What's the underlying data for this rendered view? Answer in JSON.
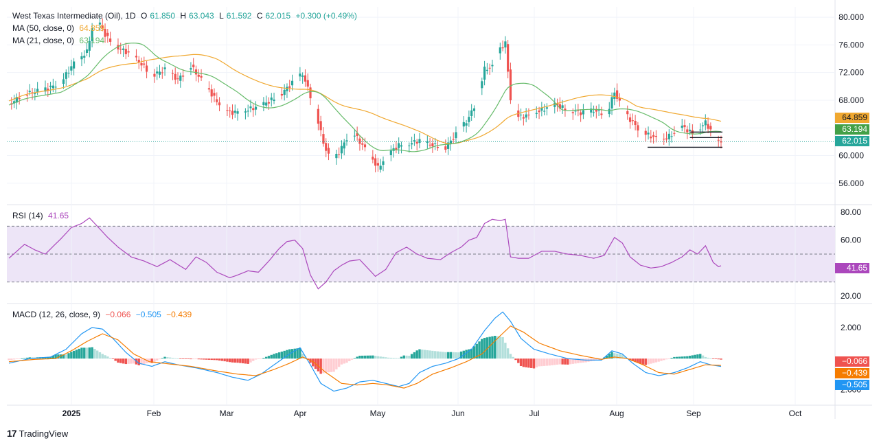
{
  "header": {
    "symbol": "West Texas Intermediate (Oil), 1D",
    "ohlc": {
      "o_label": "O",
      "o": "61.850",
      "h_label": "H",
      "h": "63.043",
      "l_label": "L",
      "l": "61.592",
      "c_label": "C",
      "c": "62.015",
      "change": "+0.300 (+0.49%)"
    },
    "ma50": {
      "label": "MA (50, close, 0)",
      "value": "64.859"
    },
    "ma21": {
      "label": "MA (21, close, 0)",
      "value": "63.194"
    }
  },
  "rsi_pane": {
    "label": "RSI (14)",
    "value": "41.65"
  },
  "macd_pane": {
    "label": "MACD (12, 26, close, 9)",
    "hist": "−0.066",
    "macd": "−0.505",
    "signal": "−0.439"
  },
  "price_tags": {
    "ma50": "64.859",
    "ma21": "63.194",
    "close": "62.015"
  },
  "rsi_tag": "41.65",
  "macd_tags": {
    "hist": "−0.066",
    "signal": "−0.439",
    "macd": "−0.505"
  },
  "branding": {
    "name": "TradingView"
  },
  "colors": {
    "up": "#26a69a",
    "down": "#ef5350",
    "ma50": "#f0a830",
    "ma21": "#66bb6a",
    "rsi": "#ab47bc",
    "rsi_band": "#ede5f7",
    "macd": "#2196f3",
    "signal": "#f57c00",
    "hist_up_strong": "#26a69a",
    "hist_up_weak": "#b2dfdb",
    "hist_down_strong": "#ef5350",
    "hist_down_weak": "#ffcdd2"
  },
  "chart_data": {
    "type": "candlestick",
    "price_axis": {
      "ticks": [
        "80.000",
        "76.000",
        "72.000",
        "68.000",
        "64.000",
        "60.000",
        "56.000"
      ],
      "range": [
        53,
        81.5
      ]
    },
    "rsi_axis": {
      "ticks": [
        "80.00",
        "60.00",
        "40.00",
        "20.00"
      ],
      "range": [
        15,
        85
      ],
      "bands": [
        70,
        30
      ],
      "midline": 50
    },
    "macd_axis": {
      "ticks": [
        "2.000",
        "−2.000"
      ],
      "range": [
        -3,
        3.5
      ]
    },
    "x_axis": {
      "ticks": [
        "2025",
        "Feb",
        "Mar",
        "Apr",
        "May",
        "Jun",
        "Jul",
        "Aug",
        "Sep",
        "Oct"
      ]
    },
    "support_lines": [
      61.2,
      62.6,
      63.4
    ],
    "price_keypoints": [
      [
        0,
        67.3
      ],
      [
        5,
        68.8
      ],
      [
        10,
        69.2
      ],
      [
        15,
        69.7
      ],
      [
        20,
        70.6
      ],
      [
        25,
        73.4
      ],
      [
        30,
        75.0
      ],
      [
        32,
        78.5
      ],
      [
        35,
        79.1
      ],
      [
        37,
        77.5
      ],
      [
        40,
        76.0
      ],
      [
        45,
        75.0
      ],
      [
        50,
        73.6
      ],
      [
        55,
        71.6
      ],
      [
        60,
        72.4
      ],
      [
        65,
        71.0
      ],
      [
        70,
        72.9
      ],
      [
        75,
        70.5
      ],
      [
        80,
        67.8
      ],
      [
        85,
        66.2
      ],
      [
        90,
        66.4
      ],
      [
        95,
        67.0
      ],
      [
        100,
        67.8
      ],
      [
        105,
        69.0
      ],
      [
        110,
        70.9
      ],
      [
        113,
        71.8
      ],
      [
        118,
        66.5
      ],
      [
        121,
        61.8
      ],
      [
        124,
        59.0
      ],
      [
        127,
        60.5
      ],
      [
        130,
        62.5
      ],
      [
        133,
        63.0
      ],
      [
        136,
        61.5
      ],
      [
        139,
        60.0
      ],
      [
        142,
        58.2
      ],
      [
        146,
        60.3
      ],
      [
        150,
        61.5
      ],
      [
        154,
        61.7
      ],
      [
        158,
        62.2
      ],
      [
        163,
        61.5
      ],
      [
        168,
        61.2
      ],
      [
        173,
        63.5
      ],
      [
        177,
        65.5
      ],
      [
        180,
        68.0
      ],
      [
        183,
        72.5
      ],
      [
        186,
        72.8
      ],
      [
        189,
        75.5
      ],
      [
        191,
        76.2
      ],
      [
        193,
        68.2
      ],
      [
        196,
        65.6
      ],
      [
        200,
        65.8
      ],
      [
        205,
        66.6
      ],
      [
        210,
        67.4
      ],
      [
        215,
        66.6
      ],
      [
        220,
        66.2
      ],
      [
        225,
        66.5
      ],
      [
        230,
        66.0
      ],
      [
        233,
        69.2
      ],
      [
        236,
        66.8
      ],
      [
        239,
        65.2
      ],
      [
        243,
        63.5
      ],
      [
        247,
        62.8
      ],
      [
        251,
        62.2
      ],
      [
        255,
        63.0
      ],
      [
        259,
        64.2
      ],
      [
        263,
        63.2
      ],
      [
        266,
        64.0
      ],
      [
        268,
        64.8
      ],
      [
        271,
        63.0
      ],
      [
        273,
        61.9
      ],
      [
        274,
        62.0
      ]
    ],
    "rsi_keypoints": [
      [
        0,
        47
      ],
      [
        6,
        57
      ],
      [
        10,
        53
      ],
      [
        14,
        50
      ],
      [
        20,
        61
      ],
      [
        24,
        69
      ],
      [
        28,
        72
      ],
      [
        31,
        76
      ],
      [
        34,
        70
      ],
      [
        38,
        62
      ],
      [
        42,
        55
      ],
      [
        47,
        48
      ],
      [
        52,
        45
      ],
      [
        57,
        41
      ],
      [
        62,
        46
      ],
      [
        68,
        39
      ],
      [
        72,
        48
      ],
      [
        76,
        44
      ],
      [
        80,
        37
      ],
      [
        85,
        33
      ],
      [
        88,
        35
      ],
      [
        92,
        38
      ],
      [
        96,
        37
      ],
      [
        100,
        45
      ],
      [
        104,
        54
      ],
      [
        107,
        59
      ],
      [
        110,
        60
      ],
      [
        113,
        54
      ],
      [
        116,
        35
      ],
      [
        119,
        25
      ],
      [
        122,
        30
      ],
      [
        125,
        38
      ],
      [
        128,
        42
      ],
      [
        131,
        45
      ],
      [
        135,
        46
      ],
      [
        138,
        40
      ],
      [
        141,
        34
      ],
      [
        145,
        39
      ],
      [
        149,
        51
      ],
      [
        153,
        55
      ],
      [
        157,
        50
      ],
      [
        161,
        47
      ],
      [
        166,
        46
      ],
      [
        170,
        51
      ],
      [
        174,
        55
      ],
      [
        177,
        60
      ],
      [
        180,
        62
      ],
      [
        183,
        72
      ],
      [
        186,
        75
      ],
      [
        189,
        74
      ],
      [
        191,
        75
      ],
      [
        193,
        48
      ],
      [
        196,
        47
      ],
      [
        200,
        47
      ],
      [
        205,
        52
      ],
      [
        210,
        52
      ],
      [
        215,
        50
      ],
      [
        220,
        49
      ],
      [
        225,
        47
      ],
      [
        229,
        49
      ],
      [
        233,
        62
      ],
      [
        236,
        58
      ],
      [
        239,
        48
      ],
      [
        243,
        42
      ],
      [
        247,
        40
      ],
      [
        251,
        41
      ],
      [
        255,
        44
      ],
      [
        259,
        48
      ],
      [
        262,
        53
      ],
      [
        265,
        50
      ],
      [
        268,
        56
      ],
      [
        271,
        44
      ],
      [
        273,
        41
      ],
      [
        274,
        41.65
      ]
    ],
    "macd_keypoints": [
      [
        0,
        -0.3
      ],
      [
        8,
        0.0
      ],
      [
        16,
        0.1
      ],
      [
        22,
        0.6
      ],
      [
        28,
        1.6
      ],
      [
        32,
        2.0
      ],
      [
        36,
        1.9
      ],
      [
        40,
        1.3
      ],
      [
        45,
        0.4
      ],
      [
        50,
        -0.3
      ],
      [
        55,
        -0.5
      ],
      [
        60,
        -0.2
      ],
      [
        65,
        -0.4
      ],
      [
        72,
        -0.6
      ],
      [
        80,
        -0.9
      ],
      [
        86,
        -1.2
      ],
      [
        92,
        -1.4
      ],
      [
        97,
        -1.0
      ],
      [
        102,
        -0.4
      ],
      [
        108,
        0.3
      ],
      [
        112,
        0.7
      ],
      [
        116,
        -0.4
      ],
      [
        120,
        -1.6
      ],
      [
        125,
        -2.1
      ],
      [
        130,
        -1.9
      ],
      [
        135,
        -1.5
      ],
      [
        140,
        -1.4
      ],
      [
        145,
        -1.6
      ],
      [
        150,
        -1.8
      ],
      [
        154,
        -1.6
      ],
      [
        158,
        -0.9
      ],
      [
        163,
        -0.5
      ],
      [
        168,
        -0.3
      ],
      [
        173,
        0.0
      ],
      [
        178,
        0.6
      ],
      [
        183,
        1.8
      ],
      [
        187,
        2.6
      ],
      [
        190,
        3.0
      ],
      [
        193,
        2.4
      ],
      [
        197,
        1.3
      ],
      [
        202,
        0.6
      ],
      [
        208,
        0.3
      ],
      [
        215,
        0.0
      ],
      [
        222,
        -0.1
      ],
      [
        228,
        -0.1
      ],
      [
        232,
        0.5
      ],
      [
        236,
        0.3
      ],
      [
        240,
        -0.3
      ],
      [
        245,
        -0.9
      ],
      [
        250,
        -1.1
      ],
      [
        256,
        -0.9
      ],
      [
        261,
        -0.6
      ],
      [
        266,
        -0.2
      ],
      [
        270,
        -0.4
      ],
      [
        274,
        -0.505
      ]
    ],
    "signal_keypoints": [
      [
        0,
        -0.2
      ],
      [
        10,
        -0.05
      ],
      [
        18,
        0.0
      ],
      [
        24,
        0.5
      ],
      [
        30,
        1.1
      ],
      [
        36,
        1.6
      ],
      [
        42,
        1.2
      ],
      [
        48,
        0.3
      ],
      [
        54,
        -0.2
      ],
      [
        62,
        -0.35
      ],
      [
        70,
        -0.5
      ],
      [
        80,
        -0.8
      ],
      [
        88,
        -1.0
      ],
      [
        95,
        -1.1
      ],
      [
        102,
        -0.7
      ],
      [
        108,
        -0.3
      ],
      [
        113,
        0.1
      ],
      [
        117,
        -0.2
      ],
      [
        122,
        -0.9
      ],
      [
        128,
        -1.6
      ],
      [
        134,
        -1.7
      ],
      [
        140,
        -1.6
      ],
      [
        146,
        -1.7
      ],
      [
        152,
        -1.9
      ],
      [
        157,
        -1.6
      ],
      [
        163,
        -1.0
      ],
      [
        170,
        -0.6
      ],
      [
        176,
        -0.2
      ],
      [
        182,
        0.3
      ],
      [
        188,
        1.3
      ],
      [
        193,
        2.1
      ],
      [
        198,
        1.7
      ],
      [
        204,
        1.0
      ],
      [
        212,
        0.5
      ],
      [
        220,
        0.2
      ],
      [
        228,
        -0.05
      ],
      [
        233,
        0.1
      ],
      [
        238,
        0.0
      ],
      [
        244,
        -0.4
      ],
      [
        250,
        -0.9
      ],
      [
        256,
        -1.0
      ],
      [
        262,
        -0.7
      ],
      [
        268,
        -0.4
      ],
      [
        274,
        -0.439
      ]
    ]
  }
}
